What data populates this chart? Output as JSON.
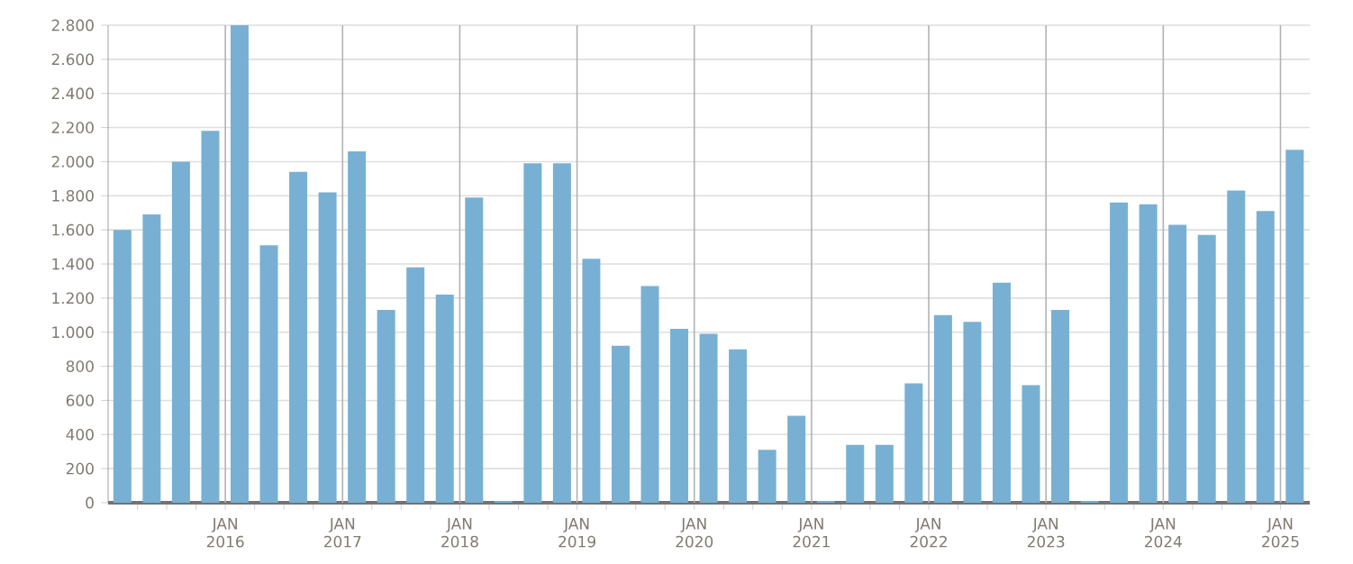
{
  "chart_data": {
    "type": "bar",
    "color": "#78b0d3",
    "grid": true,
    "x": [
      "2015-02-15",
      "2015-05-15",
      "2015-08-15",
      "2015-11-15",
      "2016-02-15",
      "2016-05-15",
      "2016-08-15",
      "2016-11-15",
      "2017-02-15",
      "2017-05-15",
      "2017-08-15",
      "2017-11-15",
      "2018-02-15",
      "2018-05-15",
      "2018-08-15",
      "2018-11-15",
      "2019-02-15",
      "2019-05-15",
      "2019-08-15",
      "2019-11-15",
      "2020-02-15",
      "2020-05-15",
      "2020-08-15",
      "2020-11-15",
      "2021-02-15",
      "2021-05-15",
      "2021-08-15",
      "2021-11-15",
      "2022-02-15",
      "2022-05-15",
      "2022-08-15",
      "2022-11-15",
      "2023-02-15",
      "2023-05-15",
      "2023-08-15",
      "2023-11-15",
      "2024-02-15",
      "2024-05-15",
      "2024-08-15",
      "2024-11-15",
      "2025-02-15"
    ],
    "values": [
      1600,
      1690,
      2000,
      2180,
      2800,
      1510,
      1940,
      1820,
      2060,
      1130,
      1380,
      1220,
      1790,
      10,
      1990,
      1990,
      1430,
      920,
      1270,
      1020,
      990,
      900,
      310,
      510,
      10,
      340,
      340,
      700,
      1100,
      1060,
      1290,
      690,
      1130,
      10,
      1760,
      1750,
      1630,
      1570,
      1830,
      1710,
      2070
    ],
    "xlim": [
      "2015-01",
      "2025-04"
    ],
    "xticks": [
      {
        "value": "2015-04",
        "label": null
      },
      {
        "value": "2015-07",
        "label": null
      },
      {
        "value": "2015-10",
        "label": null
      },
      {
        "value": "2016-01",
        "label": "JAN 2016"
      },
      {
        "value": "2016-04",
        "label": null
      },
      {
        "value": "2016-07",
        "label": null
      },
      {
        "value": "2016-10",
        "label": null
      },
      {
        "value": "2017-01",
        "label": "JAN 2017"
      },
      {
        "value": "2017-04",
        "label": null
      },
      {
        "value": "2017-07",
        "label": null
      },
      {
        "value": "2017-10",
        "label": null
      },
      {
        "value": "2018-01",
        "label": "JAN 2018"
      },
      {
        "value": "2018-04",
        "label": null
      },
      {
        "value": "2018-07",
        "label": null
      },
      {
        "value": "2018-10",
        "label": null
      },
      {
        "value": "2019-01",
        "label": "JAN 2019"
      },
      {
        "value": "2019-04",
        "label": null
      },
      {
        "value": "2019-07",
        "label": null
      },
      {
        "value": "2019-10",
        "label": null
      },
      {
        "value": "2020-01",
        "label": "JAN 2020"
      },
      {
        "value": "2020-04",
        "label": null
      },
      {
        "value": "2020-07",
        "label": null
      },
      {
        "value": "2020-10",
        "label": null
      },
      {
        "value": "2021-01",
        "label": "JAN 2021"
      },
      {
        "value": "2021-04",
        "label": null
      },
      {
        "value": "2021-07",
        "label": null
      },
      {
        "value": "2021-10",
        "label": null
      },
      {
        "value": "2022-01",
        "label": "JAN 2022"
      },
      {
        "value": "2022-04",
        "label": null
      },
      {
        "value": "2022-07",
        "label": null
      },
      {
        "value": "2022-10",
        "label": null
      },
      {
        "value": "2023-01",
        "label": "JAN 2023"
      },
      {
        "value": "2023-04",
        "label": null
      },
      {
        "value": "2023-07",
        "label": null
      },
      {
        "value": "2023-10",
        "label": null
      },
      {
        "value": "2024-01",
        "label": "JAN 2024"
      },
      {
        "value": "2024-04",
        "label": null
      },
      {
        "value": "2024-07",
        "label": null
      },
      {
        "value": "2024-10",
        "label": null
      },
      {
        "value": "2025-01",
        "label": "JAN 2025"
      }
    ],
    "ylim": [
      0,
      2800
    ],
    "yticks": [
      0,
      200,
      400,
      600,
      800,
      {
        "value": 1000,
        "label": "1.000"
      },
      {
        "value": 1200,
        "label": "1.200"
      },
      {
        "value": 1400,
        "label": "1.400"
      },
      {
        "value": 1600,
        "label": "1.600"
      },
      {
        "value": 1800,
        "label": "1.800"
      },
      {
        "value": 2000,
        "label": "2.000"
      },
      {
        "value": 2200,
        "label": "2.200"
      },
      {
        "value": 2400,
        "label": "2.400"
      },
      {
        "value": 2600,
        "label": "2.600"
      },
      {
        "value": 2800,
        "label": "2.800"
      }
    ]
  }
}
